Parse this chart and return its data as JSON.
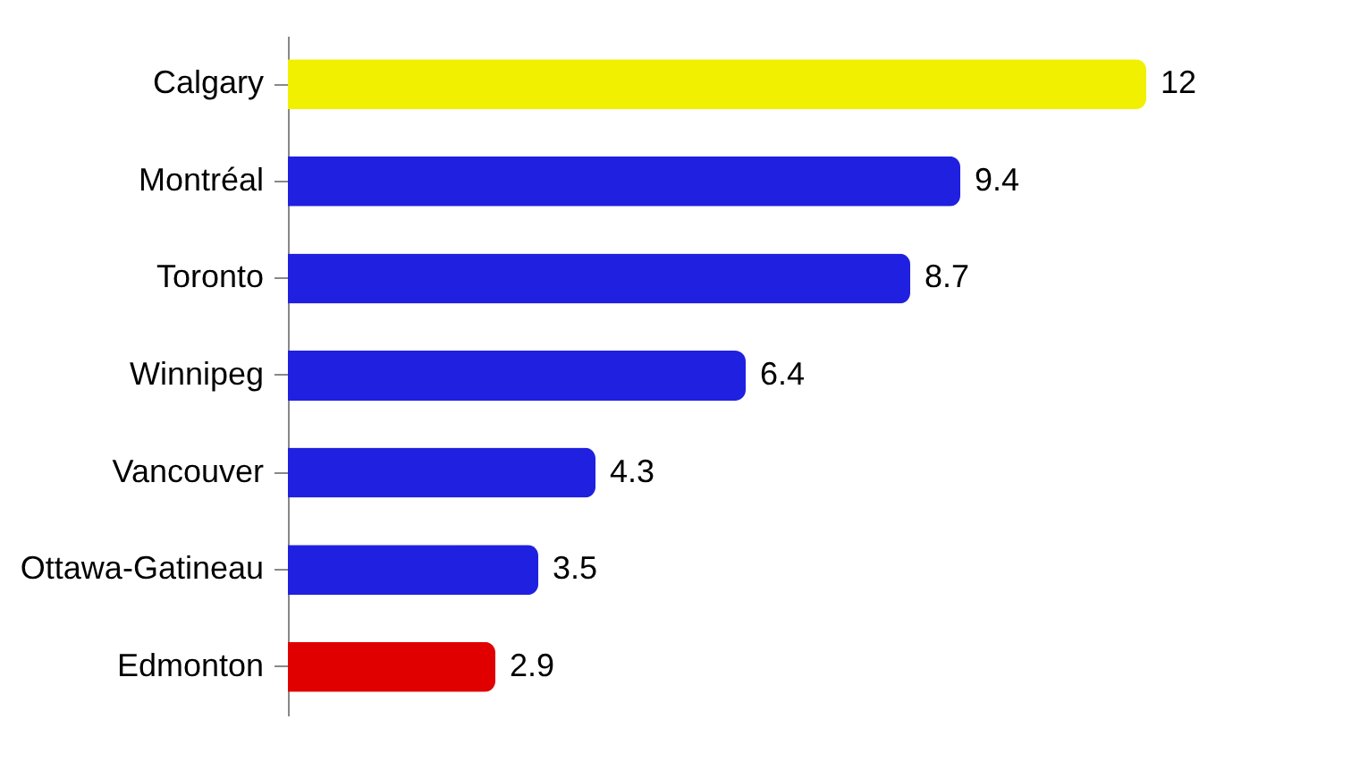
{
  "chart_data": {
    "type": "bar",
    "orientation": "horizontal",
    "categories": [
      "Calgary",
      "Montréal",
      "Toronto",
      "Winnipeg",
      "Vancouver",
      "Ottawa-Gatineau",
      "Edmonton"
    ],
    "values": [
      12,
      9.4,
      8.7,
      6.4,
      4.3,
      3.5,
      2.9
    ],
    "colors": [
      "#f0f000",
      "#2020e0",
      "#2020e0",
      "#2020e0",
      "#2020e0",
      "#2020e0",
      "#e00000"
    ],
    "data_labels": true
  }
}
